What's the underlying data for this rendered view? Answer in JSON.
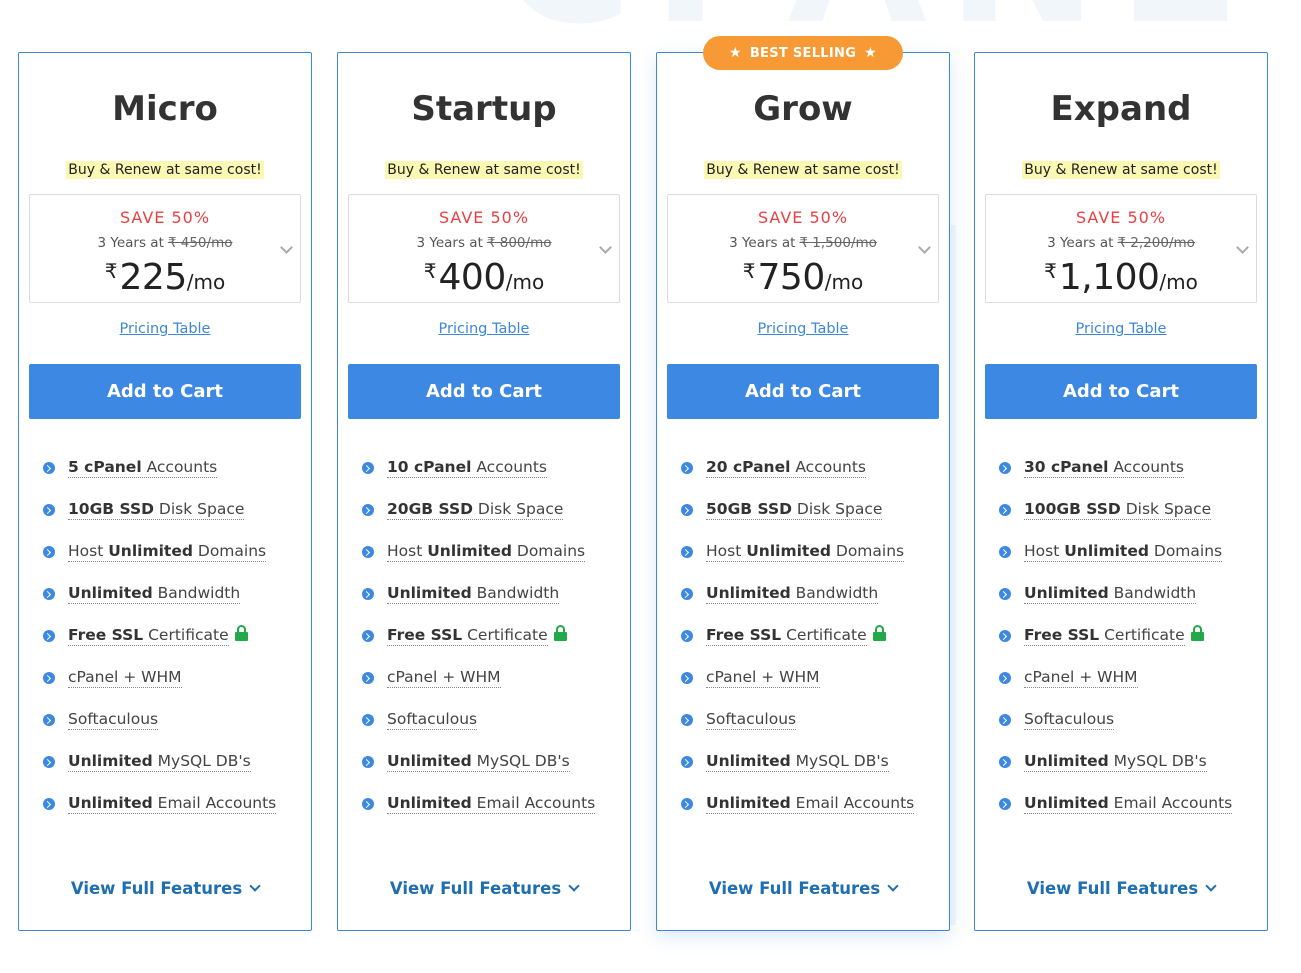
{
  "background_watermark": "CPANEL",
  "colors": {
    "accent": "#3d88e2",
    "card_border": "#3d88d6",
    "save_red": "#e84141",
    "badge_orange": "#f79a35",
    "renew_highlight": "#fbf8b4",
    "lock_green": "#22a94a",
    "link_blue": "#1e6eb0"
  },
  "plans": [
    {
      "name": "Micro",
      "renew_label": "Buy & Renew at same cost!",
      "save_label": "SAVE 50%",
      "term_label": "3 Years at",
      "original_price": "₹ 450/mo",
      "currency": "₹",
      "price": "225",
      "per_label": "/mo",
      "pricing_table_label": "Pricing Table",
      "cart_label": "Add to Cart",
      "view_full_label": "View Full Features",
      "features": [
        {
          "bold": "5 cPanel",
          "text": " Accounts"
        },
        {
          "bold": "10GB SSD",
          "text": " Disk Space"
        },
        {
          "pre": "Host ",
          "bold": "Unlimited",
          "text": " Domains"
        },
        {
          "bold": "Unlimited",
          "text": " Bandwidth"
        },
        {
          "bold": "Free SSL",
          "text": " Certificate"
        },
        {
          "text": "cPanel + WHM"
        },
        {
          "text": "Softaculous"
        },
        {
          "bold": "Unlimited",
          "text": " MySQL DB's"
        },
        {
          "bold": "Unlimited",
          "text": " Email Accounts"
        }
      ]
    },
    {
      "name": "Startup",
      "renew_label": "Buy & Renew at same cost!",
      "save_label": "SAVE 50%",
      "term_label": "3 Years at",
      "original_price": "₹ 800/mo",
      "currency": "₹",
      "price": "400",
      "per_label": "/mo",
      "pricing_table_label": "Pricing Table",
      "cart_label": "Add to Cart",
      "view_full_label": "View Full Features",
      "features": [
        {
          "bold": "10 cPanel",
          "text": " Accounts"
        },
        {
          "bold": "20GB SSD",
          "text": " Disk Space"
        },
        {
          "pre": "Host ",
          "bold": "Unlimited",
          "text": " Domains"
        },
        {
          "bold": "Unlimited",
          "text": " Bandwidth"
        },
        {
          "bold": "Free SSL",
          "text": " Certificate"
        },
        {
          "text": "cPanel + WHM"
        },
        {
          "text": "Softaculous"
        },
        {
          "bold": "Unlimited",
          "text": " MySQL DB's"
        },
        {
          "bold": "Unlimited",
          "text": " Email Accounts"
        }
      ]
    },
    {
      "name": "Grow",
      "badge": "BEST SELLING",
      "renew_label": "Buy & Renew at same cost!",
      "save_label": "SAVE 50%",
      "term_label": "3 Years at",
      "original_price": "₹ 1,500/mo",
      "currency": "₹",
      "price": "750",
      "per_label": "/mo",
      "pricing_table_label": "Pricing Table",
      "cart_label": "Add to Cart",
      "view_full_label": "View Full Features",
      "features": [
        {
          "bold": "20 cPanel",
          "text": " Accounts"
        },
        {
          "bold": "50GB SSD",
          "text": " Disk Space"
        },
        {
          "pre": "Host ",
          "bold": "Unlimited",
          "text": " Domains"
        },
        {
          "bold": "Unlimited",
          "text": " Bandwidth"
        },
        {
          "bold": "Free SSL",
          "text": " Certificate"
        },
        {
          "text": "cPanel + WHM"
        },
        {
          "text": "Softaculous"
        },
        {
          "bold": "Unlimited",
          "text": " MySQL DB's"
        },
        {
          "bold": "Unlimited",
          "text": " Email Accounts"
        }
      ]
    },
    {
      "name": "Expand",
      "renew_label": "Buy & Renew at same cost!",
      "save_label": "SAVE 50%",
      "term_label": "3 Years at",
      "original_price": "₹ 2,200/mo",
      "currency": "₹",
      "price": "1,100",
      "per_label": "/mo",
      "pricing_table_label": "Pricing Table",
      "cart_label": "Add to Cart",
      "view_full_label": "View Full Features",
      "features": [
        {
          "bold": "30 cPanel",
          "text": " Accounts"
        },
        {
          "bold": "100GB SSD",
          "text": " Disk Space"
        },
        {
          "pre": "Host ",
          "bold": "Unlimited",
          "text": " Domains"
        },
        {
          "bold": "Unlimited",
          "text": " Bandwidth"
        },
        {
          "bold": "Free SSL",
          "text": " Certificate"
        },
        {
          "text": "cPanel + WHM"
        },
        {
          "text": "Softaculous"
        },
        {
          "bold": "Unlimited",
          "text": " MySQL DB's"
        },
        {
          "bold": "Unlimited",
          "text": " Email Accounts"
        }
      ]
    }
  ]
}
